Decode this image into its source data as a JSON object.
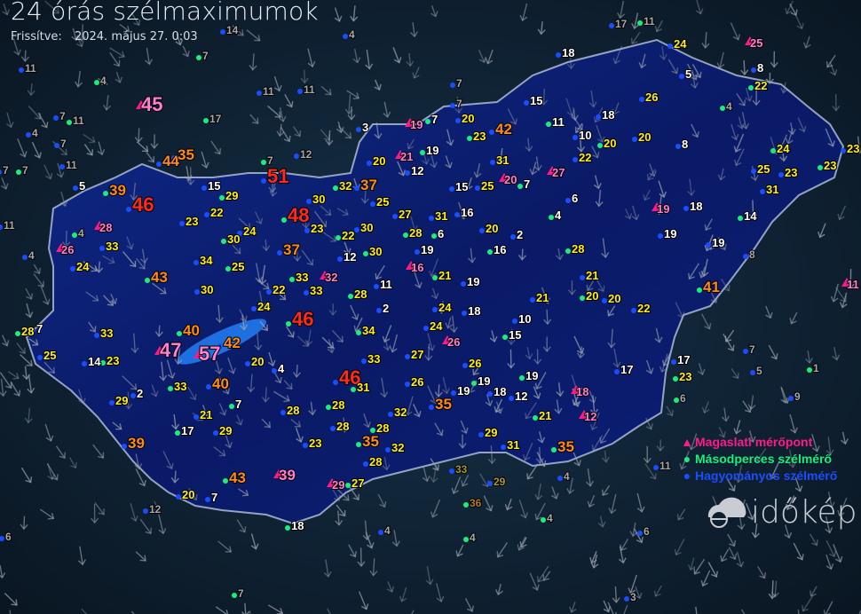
{
  "header": {
    "title": "24 órás szélmaximumok",
    "updated_label": "Frissítve:",
    "updated_value": "2024. május 27. 0:03"
  },
  "legend": {
    "items": [
      {
        "label": "Magaslati mérőpont",
        "symbol": "triangle",
        "color": "#ff1a8c"
      },
      {
        "label": "Másodperces szélmérő",
        "symbol": "circle",
        "color": "#1aef7a"
      },
      {
        "label": "Hagyományos szélmérő",
        "symbol": "circle",
        "color": "#1a4dff"
      }
    ]
  },
  "logo": {
    "text": "időkép"
  },
  "colors": {
    "low": "#ffffff",
    "mid": "#ffee22",
    "high": "#ff8a1a",
    "extreme": "#ff2a1a",
    "altitude": "#ff7fd0",
    "outside": "#a8a8a8",
    "country_fill": "#0b1d6e",
    "border": "#aab8d6"
  },
  "labels": [
    {
      "v": "45",
      "t": "altitude"
    },
    {
      "v": "44",
      "t": "station"
    },
    {
      "v": "35",
      "t": "station"
    },
    {
      "v": "39",
      "t": "station"
    },
    {
      "v": "46",
      "t": "station"
    },
    {
      "v": "15",
      "t": "station"
    },
    {
      "v": "29",
      "t": "station"
    },
    {
      "v": "51",
      "t": "station"
    },
    {
      "v": "30",
      "t": "station"
    },
    {
      "v": "32",
      "t": "station"
    },
    {
      "v": "37",
      "t": "station"
    },
    {
      "v": "25",
      "t": "station"
    },
    {
      "v": "48",
      "t": "station"
    },
    {
      "v": "23",
      "t": "station"
    },
    {
      "v": "22",
      "t": "station"
    },
    {
      "v": "30",
      "t": "station"
    },
    {
      "v": "24",
      "t": "station"
    },
    {
      "v": "23",
      "t": "station"
    },
    {
      "v": "22",
      "t": "station"
    },
    {
      "v": "30",
      "t": "station"
    },
    {
      "v": "27",
      "t": "station"
    },
    {
      "v": "28",
      "t": "station"
    },
    {
      "v": "31",
      "t": "station"
    },
    {
      "v": "16",
      "t": "station"
    },
    {
      "v": "6",
      "t": "station"
    },
    {
      "v": "20",
      "t": "station"
    },
    {
      "v": "2",
      "t": "station"
    },
    {
      "v": "16",
      "t": "station"
    },
    {
      "v": "28",
      "t": "altitude"
    },
    {
      "v": "33",
      "t": "station"
    },
    {
      "v": "26",
      "t": "altitude"
    },
    {
      "v": "24",
      "t": "station"
    },
    {
      "v": "34",
      "t": "station"
    },
    {
      "v": "25",
      "t": "station"
    },
    {
      "v": "37",
      "t": "station"
    },
    {
      "v": "12",
      "t": "station"
    },
    {
      "v": "30",
      "t": "station"
    },
    {
      "v": "19",
      "t": "station"
    },
    {
      "v": "16",
      "t": "altitude"
    },
    {
      "v": "43",
      "t": "station"
    },
    {
      "v": "30",
      "t": "station"
    },
    {
      "v": "22",
      "t": "station"
    },
    {
      "v": "33",
      "t": "station"
    },
    {
      "v": "33",
      "t": "station"
    },
    {
      "v": "32",
      "t": "altitude"
    },
    {
      "v": "28",
      "t": "station"
    },
    {
      "v": "11",
      "t": "station"
    },
    {
      "v": "2",
      "t": "station"
    },
    {
      "v": "21",
      "t": "station"
    },
    {
      "v": "19",
      "t": "station"
    },
    {
      "v": "24",
      "t": "station"
    },
    {
      "v": "46",
      "t": "station"
    },
    {
      "v": "24",
      "t": "station"
    },
    {
      "v": "18",
      "t": "station"
    },
    {
      "v": "28",
      "t": "station"
    },
    {
      "v": "7",
      "t": "station"
    },
    {
      "v": "33",
      "t": "station"
    },
    {
      "v": "40",
      "t": "station"
    },
    {
      "v": "42",
      "t": "station"
    },
    {
      "v": "47",
      "t": "altitude"
    },
    {
      "v": "57",
      "t": "altitude"
    },
    {
      "v": "25",
      "t": "station"
    },
    {
      "v": "14",
      "t": "station"
    },
    {
      "v": "23",
      "t": "station"
    },
    {
      "v": "20",
      "t": "station"
    },
    {
      "v": "4",
      "t": "station"
    },
    {
      "v": "34",
      "t": "station"
    },
    {
      "v": "33",
      "t": "station"
    },
    {
      "v": "24",
      "t": "station"
    },
    {
      "v": "26",
      "t": "altitude"
    },
    {
      "v": "27",
      "t": "station"
    },
    {
      "v": "26",
      "t": "station"
    },
    {
      "v": "33",
      "t": "station"
    },
    {
      "v": "40",
      "t": "station"
    },
    {
      "v": "46",
      "t": "station"
    },
    {
      "v": "31",
      "t": "station"
    },
    {
      "v": "26",
      "t": "station"
    },
    {
      "v": "19",
      "t": "station"
    },
    {
      "v": "19",
      "t": "station"
    },
    {
      "v": "18",
      "t": "station"
    },
    {
      "v": "12",
      "t": "station"
    },
    {
      "v": "19",
      "t": "station"
    },
    {
      "v": "2",
      "t": "station"
    },
    {
      "v": "29",
      "t": "station"
    },
    {
      "v": "7",
      "t": "station"
    },
    {
      "v": "21",
      "t": "station"
    },
    {
      "v": "28",
      "t": "station"
    },
    {
      "v": "28",
      "t": "station"
    },
    {
      "v": "32",
      "t": "station"
    },
    {
      "v": "35",
      "t": "station"
    },
    {
      "v": "21",
      "t": "station"
    },
    {
      "v": "18",
      "t": "altitude"
    },
    {
      "v": "12",
      "t": "altitude"
    },
    {
      "v": "17",
      "t": "station"
    },
    {
      "v": "29",
      "t": "station"
    },
    {
      "v": "28",
      "t": "station"
    },
    {
      "v": "28",
      "t": "station"
    },
    {
      "v": "29",
      "t": "station"
    },
    {
      "v": "31",
      "t": "station"
    },
    {
      "v": "35",
      "t": "station"
    },
    {
      "v": "39",
      "t": "station"
    },
    {
      "v": "23",
      "t": "station"
    },
    {
      "v": "35",
      "t": "station"
    },
    {
      "v": "32",
      "t": "station"
    },
    {
      "v": "28",
      "t": "station"
    },
    {
      "v": "43",
      "t": "station"
    },
    {
      "v": "39",
      "t": "altitude"
    },
    {
      "v": "29",
      "t": "altitude"
    },
    {
      "v": "27",
      "t": "station"
    },
    {
      "v": "33",
      "t": "outside"
    },
    {
      "v": "29",
      "t": "outside"
    },
    {
      "v": "36",
      "t": "outside"
    },
    {
      "v": "20",
      "t": "station"
    },
    {
      "v": "7",
      "t": "station"
    },
    {
      "v": "18",
      "t": "station"
    },
    {
      "v": "18",
      "t": "station"
    },
    {
      "v": "24",
      "t": "station"
    },
    {
      "v": "25",
      "t": "altitude"
    },
    {
      "v": "8",
      "t": "station"
    },
    {
      "v": "5",
      "t": "station"
    },
    {
      "v": "22",
      "t": "station"
    },
    {
      "v": "26",
      "t": "station"
    },
    {
      "v": "15",
      "t": "station"
    },
    {
      "v": "11",
      "t": "station"
    },
    {
      "v": "20",
      "t": "station"
    },
    {
      "v": "19",
      "t": "altitude"
    },
    {
      "v": "7",
      "t": "station"
    },
    {
      "v": "3",
      "t": "station"
    },
    {
      "v": "42",
      "t": "station"
    },
    {
      "v": "23",
      "t": "station"
    },
    {
      "v": "10",
      "t": "station"
    },
    {
      "v": "18",
      "t": "station"
    },
    {
      "v": "20",
      "t": "station"
    },
    {
      "v": "20",
      "t": "station"
    },
    {
      "v": "8",
      "t": "station"
    },
    {
      "v": "24",
      "t": "station"
    },
    {
      "v": "23",
      "t": "station"
    },
    {
      "v": "22",
      "t": "station"
    },
    {
      "v": "21",
      "t": "altitude"
    },
    {
      "v": "20",
      "t": "station"
    },
    {
      "v": "12",
      "t": "station"
    },
    {
      "v": "19",
      "t": "station"
    },
    {
      "v": "31",
      "t": "station"
    },
    {
      "v": "20",
      "t": "altitude"
    },
    {
      "v": "7",
      "t": "station"
    },
    {
      "v": "15",
      "t": "station"
    },
    {
      "v": "25",
      "t": "station"
    },
    {
      "v": "27",
      "t": "altitude"
    },
    {
      "v": "25",
      "t": "station"
    },
    {
      "v": "23",
      "t": "station"
    },
    {
      "v": "23",
      "t": "station"
    },
    {
      "v": "31",
      "t": "station"
    },
    {
      "v": "6",
      "t": "station"
    },
    {
      "v": "4",
      "t": "station"
    },
    {
      "v": "19",
      "t": "altitude"
    },
    {
      "v": "18",
      "t": "station"
    },
    {
      "v": "14",
      "t": "station"
    },
    {
      "v": "19",
      "t": "station"
    },
    {
      "v": "19",
      "t": "station"
    },
    {
      "v": "28",
      "t": "station"
    },
    {
      "v": "21",
      "t": "station"
    },
    {
      "v": "21",
      "t": "station"
    },
    {
      "v": "20",
      "t": "station"
    },
    {
      "v": "20",
      "t": "station"
    },
    {
      "v": "22",
      "t": "station"
    },
    {
      "v": "41",
      "t": "station"
    },
    {
      "v": "11",
      "t": "altitude"
    },
    {
      "v": "10",
      "t": "station"
    },
    {
      "v": "15",
      "t": "station"
    },
    {
      "v": "17",
      "t": "station"
    },
    {
      "v": "17",
      "t": "station"
    },
    {
      "v": "23",
      "t": "station"
    },
    {
      "v": "5",
      "t": "station"
    },
    {
      "v": "12",
      "t": "outside"
    },
    {
      "v": "7",
      "t": "outside"
    },
    {
      "v": "12",
      "t": "outside"
    },
    {
      "v": "11",
      "t": "outside"
    },
    {
      "v": "4",
      "t": "outside"
    },
    {
      "v": "11",
      "t": "outside"
    },
    {
      "v": "11",
      "t": "outside"
    },
    {
      "v": "7",
      "t": "outside"
    },
    {
      "v": "14",
      "t": "outside"
    },
    {
      "v": "4",
      "t": "outside"
    },
    {
      "v": "17",
      "t": "outside"
    },
    {
      "v": "7",
      "t": "outside"
    },
    {
      "v": "4",
      "t": "outside"
    },
    {
      "v": "11",
      "t": "outside"
    },
    {
      "v": "7",
      "t": "outside"
    },
    {
      "v": "7",
      "t": "outside"
    },
    {
      "v": "7",
      "t": "outside"
    },
    {
      "v": "11",
      "t": "outside"
    },
    {
      "v": "11",
      "t": "outside"
    },
    {
      "v": "4",
      "t": "outside"
    },
    {
      "v": "4",
      "t": "outside"
    },
    {
      "v": "17",
      "t": "outside"
    },
    {
      "v": "11",
      "t": "outside"
    },
    {
      "v": "7",
      "t": "outside"
    },
    {
      "v": "7",
      "t": "outside"
    },
    {
      "v": "4",
      "t": "outside"
    },
    {
      "v": "8",
      "t": "outside"
    },
    {
      "v": "5",
      "t": "outside"
    },
    {
      "v": "1",
      "t": "outside"
    },
    {
      "v": "9",
      "t": "outside"
    },
    {
      "v": "7",
      "t": "outside"
    },
    {
      "v": "6",
      "t": "outside"
    },
    {
      "v": "4",
      "t": "outside"
    },
    {
      "v": "11",
      "t": "outside"
    },
    {
      "v": "4",
      "t": "outside"
    },
    {
      "v": "6",
      "t": "outside"
    },
    {
      "v": "3",
      "t": "outside"
    },
    {
      "v": "7",
      "t": "outside"
    },
    {
      "v": "4",
      "t": "outside"
    },
    {
      "v": "6",
      "t": "outside"
    },
    {
      "v": "4",
      "t": "outside"
    }
  ]
}
